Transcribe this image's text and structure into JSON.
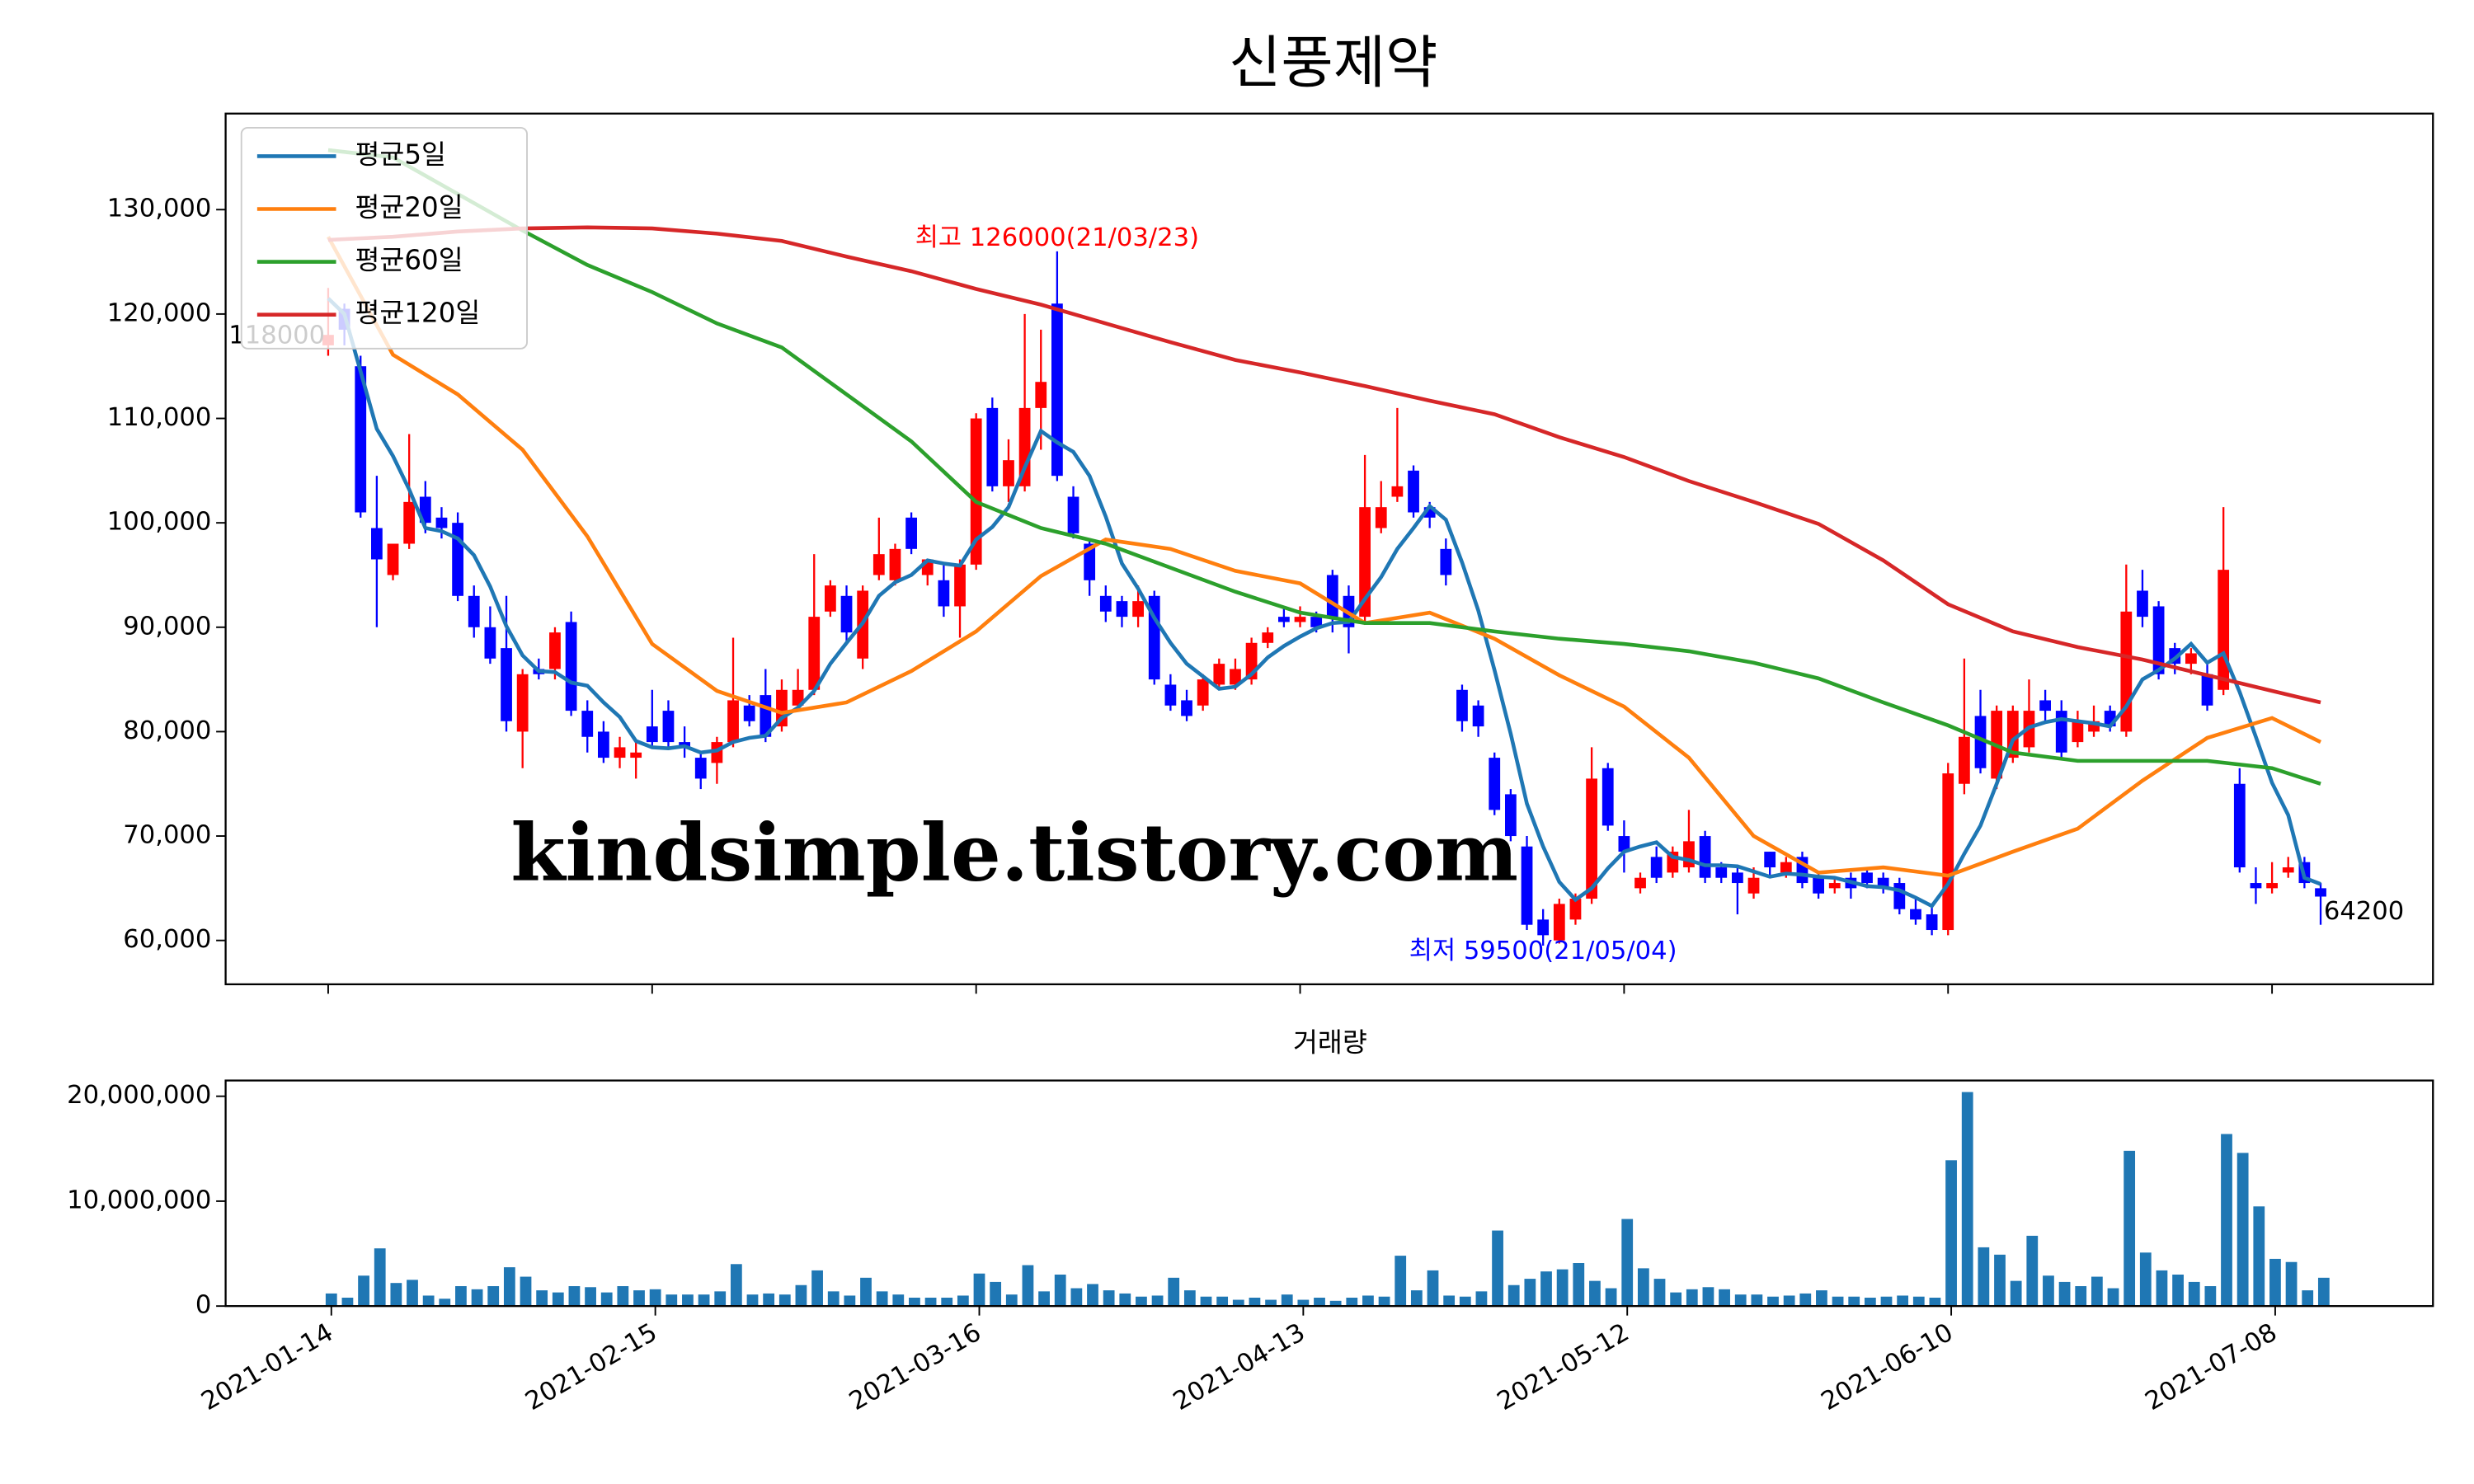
{
  "chart_data": [
    {
      "type": "candlestick",
      "title": "신풍제약",
      "open": [
        117000,
        120500,
        115000,
        99500,
        95000,
        98000,
        102500,
        100500,
        100000,
        93000,
        90000,
        88000,
        80000,
        86000,
        86000,
        90500,
        82000,
        80000,
        77500,
        77500,
        80500,
        82000,
        79000,
        77500,
        77000,
        79000,
        82500,
        83500,
        80500,
        82500,
        84000,
        91500,
        93000,
        87000,
        95000,
        94500,
        100500,
        95000,
        94500,
        92000,
        96000,
        111000,
        103500,
        103500,
        111000,
        121000,
        102500,
        98000,
        93000,
        92500,
        91000,
        93000,
        84500,
        83000,
        82500,
        84500,
        84500,
        85000,
        88500,
        91000,
        90500,
        91000,
        95000,
        93000,
        91000,
        99500,
        102500,
        105000,
        101500,
        97500,
        84000,
        82500,
        77500,
        74000,
        69000,
        62000,
        60000,
        62000,
        64000,
        76500,
        70000,
        65000,
        68000,
        66500,
        67000,
        70000,
        67000,
        66500,
        64500,
        68500,
        66500,
        68000,
        66000,
        65000,
        66000,
        66500,
        66000,
        65500,
        63000,
        62500,
        61000,
        75000,
        81500,
        75500,
        77500,
        78500,
        83000,
        82000,
        79000,
        80000,
        82000,
        80000,
        93500,
        92000,
        88000,
        86500,
        85500,
        84000,
        75000,
        65500,
        65000,
        66500,
        67500,
        65000
      ],
      "high": [
        122500,
        121000,
        116000,
        104500,
        98000,
        108500,
        104000,
        101500,
        101000,
        94000,
        92000,
        93000,
        86000,
        87000,
        90000,
        91500,
        83000,
        81000,
        79500,
        79000,
        84000,
        83000,
        80500,
        78000,
        79500,
        89000,
        83500,
        86000,
        85000,
        86000,
        97000,
        94500,
        94000,
        94000,
        100500,
        98000,
        101000,
        96500,
        96000,
        96500,
        110500,
        112000,
        108000,
        120000,
        118500,
        126000,
        103500,
        98500,
        94000,
        93000,
        94000,
        93500,
        85500,
        84000,
        85500,
        87000,
        87000,
        89000,
        90000,
        92000,
        92000,
        91500,
        95500,
        94000,
        106500,
        104000,
        111000,
        105500,
        102000,
        98500,
        84500,
        83000,
        78000,
        74500,
        70000,
        63000,
        64000,
        64500,
        78500,
        77000,
        71500,
        66500,
        69000,
        69000,
        72500,
        70500,
        67500,
        67000,
        67000,
        68500,
        68000,
        68500,
        66500,
        66000,
        66500,
        67000,
        66500,
        66000,
        64000,
        63500,
        77000,
        87000,
        84000,
        82500,
        82500,
        85000,
        84000,
        83000,
        82000,
        82500,
        82500,
        96000,
        95500,
        92500,
        88500,
        88000,
        86500,
        101500,
        76500,
        67000,
        67500,
        68000,
        68000,
        65500
      ],
      "low": [
        116000,
        117000,
        100500,
        90000,
        94500,
        97500,
        99000,
        98500,
        92500,
        89000,
        86500,
        80000,
        76500,
        85000,
        85000,
        81500,
        78000,
        77000,
        76500,
        75500,
        78500,
        78500,
        77500,
        74500,
        75000,
        78500,
        80500,
        79000,
        80000,
        82000,
        83500,
        91000,
        88500,
        86000,
        94500,
        94000,
        97000,
        94000,
        91000,
        89000,
        95500,
        103000,
        102000,
        103000,
        107000,
        104000,
        98500,
        93000,
        90500,
        90000,
        90000,
        84500,
        82000,
        81000,
        82000,
        84000,
        84000,
        84500,
        88000,
        90000,
        90000,
        89500,
        89500,
        87500,
        90500,
        99000,
        102000,
        100500,
        99500,
        94000,
        80000,
        79500,
        72000,
        69500,
        61000,
        59500,
        59700,
        61500,
        63500,
        70500,
        66500,
        64500,
        65500,
        66000,
        66500,
        65500,
        65500,
        62500,
        64000,
        66000,
        66000,
        65000,
        64000,
        64500,
        64000,
        65000,
        64500,
        62500,
        61500,
        60500,
        60500,
        74000,
        76000,
        74500,
        77000,
        78000,
        81000,
        77500,
        78500,
        79500,
        80000,
        79500,
        90000,
        85000,
        85500,
        85500,
        82000,
        83500,
        66500,
        63500,
        64500,
        66000,
        65000,
        61500
      ],
      "close": [
        118000,
        118500,
        101000,
        96500,
        98000,
        102000,
        100000,
        99500,
        93000,
        90000,
        87000,
        81000,
        85500,
        85500,
        89500,
        82000,
        79500,
        77500,
        78500,
        78000,
        79000,
        79000,
        78500,
        75500,
        79000,
        83000,
        81000,
        79500,
        84000,
        84000,
        91000,
        94000,
        89500,
        93500,
        97000,
        97500,
        97500,
        96500,
        92000,
        96000,
        110000,
        103500,
        106000,
        111000,
        113500,
        104500,
        99000,
        94500,
        91500,
        91000,
        92500,
        85000,
        82500,
        81500,
        85000,
        86500,
        86000,
        88500,
        89500,
        90500,
        91000,
        90000,
        91000,
        90000,
        101500,
        101500,
        103500,
        101000,
        100500,
        95000,
        81000,
        80500,
        72500,
        70000,
        61500,
        60500,
        63500,
        64000,
        75500,
        71000,
        68500,
        66000,
        66000,
        68500,
        69500,
        66000,
        66000,
        65500,
        66000,
        67000,
        67500,
        65500,
        64500,
        65500,
        65000,
        65500,
        65000,
        63000,
        62000,
        61000,
        76000,
        79500,
        76500,
        82000,
        82000,
        82000,
        82000,
        78000,
        81000,
        81000,
        80500,
        91500,
        91000,
        85500,
        86500,
        87500,
        82500,
        95500,
        67000,
        65000,
        65500,
        67000,
        65500,
        64200
      ],
      "up_color": "#ff0000",
      "down_color": "#0000ff",
      "series": [
        {
          "name": "평균5일",
          "color": "#1f77b4",
          "values": [
            121500,
            120000,
            114500,
            109000,
            106400,
            103200,
            99500,
            99200,
            98500,
            96900,
            93900,
            90100,
            87300,
            85800,
            85700,
            84700,
            84400,
            82800,
            81400,
            79100,
            78500,
            78400,
            78600,
            78000,
            78200,
            79000,
            79400,
            79600,
            81300,
            82300,
            83900,
            86500,
            88500,
            90400,
            93000,
            94300,
            95000,
            96400,
            96100,
            95900,
            98400,
            99600,
            101500,
            105300,
            108800,
            107700,
            106800,
            104500,
            100600,
            96100,
            93700,
            90900,
            88500,
            86500,
            85300,
            84100,
            84300,
            85500,
            87100,
            88200,
            89100,
            89900,
            90400,
            90500,
            92700,
            94800,
            97500,
            99500,
            101600,
            100300,
            96200,
            91600,
            85900,
            79800,
            73100,
            69000,
            65600,
            63900,
            65000,
            66900,
            68500,
            69000,
            69400,
            68000,
            67700,
            67200,
            67200,
            67100,
            66600,
            66100,
            66400,
            66300,
            66100,
            66000,
            65600,
            65200,
            65100,
            64800,
            64100,
            63300,
            65400,
            68300,
            71000,
            75000,
            79200,
            80400,
            80900,
            81200,
            81000,
            80800,
            80500,
            82400,
            85000,
            85900,
            87000,
            88400,
            86600,
            87500,
            83800,
            79500,
            75100,
            72000,
            66000,
            65400
          ]
        },
        {
          "name": "평균20일",
          "color": "#ff7f0e",
          "x": [
            0,
            4,
            8,
            12,
            16,
            20,
            24,
            28,
            32,
            36,
            40,
            44,
            48,
            52,
            56,
            60,
            64,
            68,
            72,
            76,
            80,
            84,
            88,
            92,
            96,
            100,
            104,
            108,
            112,
            116,
            120,
            123
          ],
          "values": [
            127400,
            116100,
            112300,
            107000,
            98700,
            88400,
            83900,
            81800,
            82800,
            85800,
            89600,
            94900,
            98400,
            97500,
            95400,
            94200,
            90400,
            91400,
            88900,
            85400,
            82400,
            77500,
            70000,
            66500,
            67000,
            66200,
            68500,
            70700,
            75300,
            79400,
            81300,
            79000
          ]
        },
        {
          "name": "평균60일",
          "color": "#2ca02c",
          "x": [
            0,
            4,
            8,
            12,
            16,
            20,
            24,
            28,
            32,
            36,
            40,
            44,
            48,
            52,
            56,
            60,
            64,
            68,
            72,
            76,
            80,
            84,
            88,
            92,
            96,
            100,
            104,
            108,
            112,
            116,
            120,
            123
          ],
          "values": [
            135700,
            135000,
            131500,
            128000,
            124700,
            122100,
            119100,
            116800,
            112300,
            107800,
            102000,
            99500,
            98000,
            95700,
            93400,
            91400,
            90400,
            90400,
            89600,
            88900,
            88400,
            87700,
            86600,
            85100,
            82800,
            80600,
            78000,
            77200,
            77200,
            77200,
            76500,
            75000
          ]
        },
        {
          "name": "평균120일",
          "color": "#d62728",
          "x": [
            0,
            4,
            8,
            12,
            16,
            20,
            24,
            28,
            32,
            36,
            40,
            44,
            48,
            52,
            56,
            60,
            64,
            68,
            72,
            76,
            80,
            84,
            88,
            92,
            96,
            100,
            104,
            108,
            112,
            116,
            120,
            123
          ],
          "values": [
            127100,
            127400,
            127900,
            128200,
            128300,
            128200,
            127700,
            127000,
            125500,
            124100,
            122400,
            120900,
            119100,
            117300,
            115600,
            114400,
            113100,
            111700,
            110400,
            108200,
            106300,
            104000,
            102000,
            99900,
            96400,
            92200,
            89600,
            88100,
            86900,
            85400,
            83900,
            82800
          ]
        }
      ],
      "legend": "upper left",
      "ylim": [
        55800,
        139200
      ],
      "yticks": [
        {
          "value": 60000,
          "label": "60,000"
        },
        {
          "value": 70000,
          "label": "70,000"
        },
        {
          "value": 80000,
          "label": "80,000"
        },
        {
          "value": 90000,
          "label": "90,000"
        },
        {
          "value": 100000,
          "label": "100,000"
        },
        {
          "value": 110000,
          "label": "110,000"
        },
        {
          "value": 120000,
          "label": "120,000"
        },
        {
          "value": 130000,
          "label": "130,000"
        }
      ],
      "annotations": [
        {
          "text": "최고 126000(21/03/23)",
          "color": "#ff0000"
        },
        {
          "text": "최저 59500(21/05/04)",
          "color": "#0000ff"
        }
      ],
      "watermark": "kindsimple.tistory.com"
    },
    {
      "type": "bar",
      "title": "거래량",
      "color": "#1f77b4",
      "categories": [
        "2021-01-14",
        null,
        null,
        null,
        null,
        null,
        null,
        null,
        null,
        null,
        null,
        null,
        null,
        null,
        null,
        null,
        null,
        null,
        null,
        null,
        "2021-02-15",
        null,
        null,
        null,
        null,
        null,
        null,
        null,
        null,
        null,
        null,
        null,
        null,
        null,
        null,
        null,
        null,
        null,
        null,
        null,
        "2021-03-16",
        null,
        null,
        null,
        null,
        null,
        null,
        null,
        null,
        null,
        null,
        null,
        null,
        null,
        null,
        null,
        null,
        null,
        null,
        null,
        "2021-04-13",
        null,
        null,
        null,
        null,
        null,
        null,
        null,
        null,
        null,
        null,
        null,
        null,
        null,
        null,
        null,
        null,
        null,
        null,
        null,
        "2021-05-12",
        null,
        null,
        null,
        null,
        null,
        null,
        null,
        null,
        null,
        null,
        null,
        null,
        null,
        null,
        null,
        null,
        null,
        null,
        null,
        "2021-06-10",
        null,
        null,
        null,
        null,
        null,
        null,
        null,
        null,
        null,
        null,
        null,
        null,
        null,
        null,
        null,
        null,
        null,
        null,
        null,
        "2021-07-08",
        null,
        null,
        null
      ],
      "values": [
        1200000,
        800000,
        2900000,
        5500000,
        2200000,
        2500000,
        1000000,
        700000,
        1900000,
        1600000,
        1900000,
        3700000,
        2800000,
        1500000,
        1300000,
        1900000,
        1800000,
        1300000,
        1900000,
        1500000,
        1600000,
        1100000,
        1100000,
        1100000,
        1400000,
        4000000,
        1100000,
        1200000,
        1100000,
        2000000,
        3400000,
        1400000,
        1000000,
        2700000,
        1400000,
        1100000,
        800000,
        800000,
        800000,
        1000000,
        3100000,
        2300000,
        1100000,
        3900000,
        1400000,
        3000000,
        1700000,
        2100000,
        1500000,
        1200000,
        900000,
        1000000,
        2700000,
        1500000,
        900000,
        900000,
        600000,
        800000,
        600000,
        1100000,
        600000,
        800000,
        500000,
        800000,
        1000000,
        900000,
        4800000,
        1500000,
        3400000,
        1000000,
        900000,
        1400000,
        7200000,
        2000000,
        2600000,
        3300000,
        3500000,
        4100000,
        2400000,
        1700000,
        8300000,
        3600000,
        2600000,
        1300000,
        1600000,
        1800000,
        1600000,
        1100000,
        1100000,
        900000,
        1000000,
        1200000,
        1500000,
        900000,
        900000,
        800000,
        900000,
        1000000,
        900000,
        800000,
        13900000,
        20400000,
        5600000,
        4900000,
        2400000,
        6700000,
        2900000,
        2300000,
        1900000,
        2800000,
        1700000,
        14800000,
        5100000,
        3400000,
        3000000,
        2300000,
        1900000,
        16400000,
        14600000,
        9500000,
        4500000,
        4200000,
        1500000,
        2700000
      ],
      "ylim": [
        0,
        21500000
      ],
      "yticks": [
        0,
        {
          "value": 10000000,
          "label": "10,000,000"
        },
        {
          "value": 20000000,
          "label": "20,000,000"
        }
      ]
    }
  ]
}
